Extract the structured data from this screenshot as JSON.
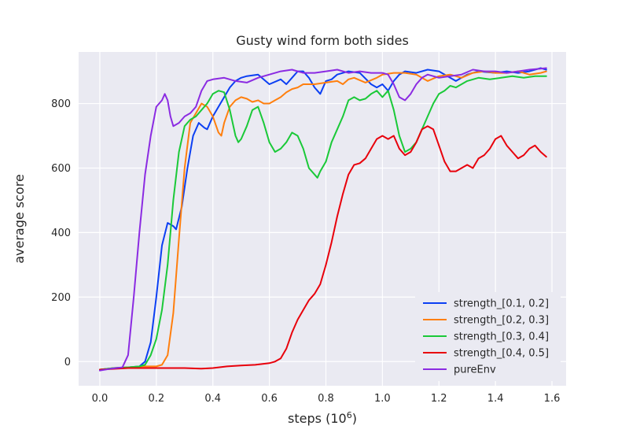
{
  "chart_data": {
    "type": "line",
    "title": "Gusty wind form both sides",
    "xlabel_base": "steps (10",
    "xlabel_exp": "6",
    "xlabel_close": ")",
    "ylabel": "average score",
    "xlim": [
      -0.075,
      1.65
    ],
    "ylim": [
      -75,
      960
    ],
    "xticks": [
      0.0,
      0.2,
      0.4,
      0.6,
      0.8,
      1.0,
      1.2,
      1.4,
      1.6
    ],
    "xtick_labels": [
      "0.0",
      "0.2",
      "0.4",
      "0.6",
      "0.8",
      "1.0",
      "1.2",
      "1.4",
      "1.6"
    ],
    "yticks": [
      0,
      200,
      400,
      600,
      800
    ],
    "ytick_labels": [
      "0",
      "200",
      "400",
      "600",
      "800"
    ],
    "grid": true,
    "legend_position": "lower-right",
    "background": "#eaeaf2",
    "series": [
      {
        "name": "strength_[0.1, 0.2]",
        "color": "#0b3ff3",
        "points": [
          [
            0.0,
            -25
          ],
          [
            0.05,
            -20
          ],
          [
            0.1,
            -18
          ],
          [
            0.14,
            -15
          ],
          [
            0.16,
            0
          ],
          [
            0.18,
            60
          ],
          [
            0.2,
            200
          ],
          [
            0.22,
            360
          ],
          [
            0.24,
            430
          ],
          [
            0.26,
            420
          ],
          [
            0.27,
            410
          ],
          [
            0.29,
            480
          ],
          [
            0.31,
            600
          ],
          [
            0.33,
            700
          ],
          [
            0.35,
            740
          ],
          [
            0.37,
            725
          ],
          [
            0.38,
            720
          ],
          [
            0.4,
            760
          ],
          [
            0.42,
            790
          ],
          [
            0.44,
            820
          ],
          [
            0.46,
            850
          ],
          [
            0.48,
            870
          ],
          [
            0.5,
            880
          ],
          [
            0.52,
            885
          ],
          [
            0.56,
            890
          ],
          [
            0.6,
            860
          ],
          [
            0.64,
            875
          ],
          [
            0.66,
            860
          ],
          [
            0.68,
            880
          ],
          [
            0.7,
            900
          ],
          [
            0.72,
            900
          ],
          [
            0.74,
            880
          ],
          [
            0.76,
            850
          ],
          [
            0.78,
            830
          ],
          [
            0.8,
            870
          ],
          [
            0.82,
            875
          ],
          [
            0.84,
            890
          ],
          [
            0.88,
            900
          ],
          [
            0.92,
            895
          ],
          [
            0.96,
            860
          ],
          [
            0.98,
            850
          ],
          [
            1.0,
            860
          ],
          [
            1.02,
            840
          ],
          [
            1.04,
            870
          ],
          [
            1.06,
            890
          ],
          [
            1.08,
            900
          ],
          [
            1.12,
            895
          ],
          [
            1.16,
            905
          ],
          [
            1.2,
            900
          ],
          [
            1.24,
            880
          ],
          [
            1.26,
            870
          ],
          [
            1.28,
            880
          ],
          [
            1.3,
            890
          ],
          [
            1.34,
            900
          ],
          [
            1.4,
            895
          ],
          [
            1.44,
            900
          ],
          [
            1.48,
            895
          ],
          [
            1.52,
            900
          ],
          [
            1.56,
            910
          ],
          [
            1.58,
            905
          ]
        ]
      },
      {
        "name": "strength_[0.2, 0.3]",
        "color": "#ff7f0e",
        "points": [
          [
            0.0,
            -25
          ],
          [
            0.05,
            -20
          ],
          [
            0.1,
            -18
          ],
          [
            0.15,
            -15
          ],
          [
            0.2,
            -15
          ],
          [
            0.22,
            -10
          ],
          [
            0.24,
            20
          ],
          [
            0.26,
            150
          ],
          [
            0.28,
            380
          ],
          [
            0.3,
            600
          ],
          [
            0.32,
            740
          ],
          [
            0.34,
            770
          ],
          [
            0.36,
            800
          ],
          [
            0.38,
            790
          ],
          [
            0.4,
            760
          ],
          [
            0.42,
            710
          ],
          [
            0.43,
            700
          ],
          [
            0.44,
            740
          ],
          [
            0.46,
            790
          ],
          [
            0.48,
            810
          ],
          [
            0.5,
            820
          ],
          [
            0.52,
            815
          ],
          [
            0.54,
            805
          ],
          [
            0.56,
            810
          ],
          [
            0.58,
            800
          ],
          [
            0.6,
            800
          ],
          [
            0.62,
            810
          ],
          [
            0.64,
            820
          ],
          [
            0.66,
            835
          ],
          [
            0.68,
            845
          ],
          [
            0.7,
            850
          ],
          [
            0.72,
            860
          ],
          [
            0.76,
            860
          ],
          [
            0.8,
            865
          ],
          [
            0.84,
            870
          ],
          [
            0.86,
            860
          ],
          [
            0.88,
            875
          ],
          [
            0.9,
            880
          ],
          [
            0.94,
            865
          ],
          [
            0.98,
            880
          ],
          [
            1.0,
            890
          ],
          [
            1.04,
            895
          ],
          [
            1.08,
            895
          ],
          [
            1.12,
            890
          ],
          [
            1.16,
            870
          ],
          [
            1.2,
            885
          ],
          [
            1.24,
            890
          ],
          [
            1.28,
            880
          ],
          [
            1.32,
            895
          ],
          [
            1.36,
            900
          ],
          [
            1.4,
            895
          ],
          [
            1.44,
            895
          ],
          [
            1.48,
            900
          ],
          [
            1.52,
            890
          ],
          [
            1.56,
            895
          ],
          [
            1.58,
            900
          ]
        ]
      },
      {
        "name": "strength_[0.3, 0.4]",
        "color": "#1ac938",
        "points": [
          [
            0.0,
            -25
          ],
          [
            0.05,
            -20
          ],
          [
            0.1,
            -18
          ],
          [
            0.14,
            -15
          ],
          [
            0.16,
            -10
          ],
          [
            0.18,
            20
          ],
          [
            0.2,
            70
          ],
          [
            0.22,
            160
          ],
          [
            0.24,
            300
          ],
          [
            0.26,
            500
          ],
          [
            0.28,
            650
          ],
          [
            0.3,
            730
          ],
          [
            0.32,
            750
          ],
          [
            0.34,
            760
          ],
          [
            0.36,
            780
          ],
          [
            0.38,
            800
          ],
          [
            0.4,
            830
          ],
          [
            0.42,
            840
          ],
          [
            0.44,
            835
          ],
          [
            0.46,
            780
          ],
          [
            0.48,
            700
          ],
          [
            0.49,
            680
          ],
          [
            0.5,
            690
          ],
          [
            0.52,
            730
          ],
          [
            0.54,
            780
          ],
          [
            0.56,
            790
          ],
          [
            0.58,
            740
          ],
          [
            0.6,
            680
          ],
          [
            0.62,
            650
          ],
          [
            0.64,
            660
          ],
          [
            0.66,
            680
          ],
          [
            0.68,
            710
          ],
          [
            0.7,
            700
          ],
          [
            0.72,
            660
          ],
          [
            0.74,
            600
          ],
          [
            0.76,
            580
          ],
          [
            0.77,
            570
          ],
          [
            0.78,
            590
          ],
          [
            0.8,
            620
          ],
          [
            0.82,
            680
          ],
          [
            0.84,
            720
          ],
          [
            0.86,
            760
          ],
          [
            0.88,
            810
          ],
          [
            0.9,
            820
          ],
          [
            0.92,
            810
          ],
          [
            0.94,
            815
          ],
          [
            0.96,
            830
          ],
          [
            0.98,
            840
          ],
          [
            1.0,
            820
          ],
          [
            1.02,
            840
          ],
          [
            1.04,
            780
          ],
          [
            1.06,
            700
          ],
          [
            1.08,
            650
          ],
          [
            1.1,
            660
          ],
          [
            1.12,
            680
          ],
          [
            1.14,
            720
          ],
          [
            1.16,
            760
          ],
          [
            1.18,
            800
          ],
          [
            1.2,
            830
          ],
          [
            1.22,
            840
          ],
          [
            1.24,
            855
          ],
          [
            1.26,
            850
          ],
          [
            1.28,
            860
          ],
          [
            1.3,
            870
          ],
          [
            1.34,
            880
          ],
          [
            1.38,
            875
          ],
          [
            1.42,
            880
          ],
          [
            1.46,
            885
          ],
          [
            1.5,
            880
          ],
          [
            1.54,
            885
          ],
          [
            1.58,
            885
          ]
        ]
      },
      {
        "name": "strength_[0.4, 0.5]",
        "color": "#e8000b",
        "points": [
          [
            0.0,
            -25
          ],
          [
            0.1,
            -20
          ],
          [
            0.2,
            -20
          ],
          [
            0.3,
            -20
          ],
          [
            0.36,
            -22
          ],
          [
            0.4,
            -20
          ],
          [
            0.45,
            -15
          ],
          [
            0.5,
            -12
          ],
          [
            0.55,
            -10
          ],
          [
            0.6,
            -5
          ],
          [
            0.62,
            0
          ],
          [
            0.64,
            10
          ],
          [
            0.66,
            40
          ],
          [
            0.68,
            90
          ],
          [
            0.7,
            130
          ],
          [
            0.72,
            160
          ],
          [
            0.74,
            190
          ],
          [
            0.76,
            210
          ],
          [
            0.78,
            240
          ],
          [
            0.8,
            300
          ],
          [
            0.82,
            370
          ],
          [
            0.84,
            450
          ],
          [
            0.86,
            520
          ],
          [
            0.88,
            580
          ],
          [
            0.9,
            610
          ],
          [
            0.92,
            615
          ],
          [
            0.94,
            630
          ],
          [
            0.96,
            660
          ],
          [
            0.98,
            690
          ],
          [
            1.0,
            700
          ],
          [
            1.02,
            690
          ],
          [
            1.04,
            700
          ],
          [
            1.06,
            660
          ],
          [
            1.08,
            640
          ],
          [
            1.1,
            650
          ],
          [
            1.12,
            680
          ],
          [
            1.14,
            720
          ],
          [
            1.16,
            730
          ],
          [
            1.18,
            720
          ],
          [
            1.2,
            670
          ],
          [
            1.22,
            620
          ],
          [
            1.24,
            590
          ],
          [
            1.26,
            590
          ],
          [
            1.28,
            600
          ],
          [
            1.3,
            610
          ],
          [
            1.32,
            600
          ],
          [
            1.34,
            630
          ],
          [
            1.36,
            640
          ],
          [
            1.38,
            660
          ],
          [
            1.4,
            690
          ],
          [
            1.42,
            700
          ],
          [
            1.44,
            670
          ],
          [
            1.46,
            650
          ],
          [
            1.48,
            630
          ],
          [
            1.5,
            640
          ],
          [
            1.52,
            660
          ],
          [
            1.54,
            670
          ],
          [
            1.56,
            650
          ],
          [
            1.58,
            635
          ]
        ]
      },
      {
        "name": "pureEnv",
        "color": "#8b2be2",
        "points": [
          [
            0.0,
            -28
          ],
          [
            0.04,
            -22
          ],
          [
            0.08,
            -18
          ],
          [
            0.1,
            20
          ],
          [
            0.12,
            200
          ],
          [
            0.14,
            400
          ],
          [
            0.16,
            580
          ],
          [
            0.18,
            700
          ],
          [
            0.2,
            790
          ],
          [
            0.22,
            810
          ],
          [
            0.23,
            830
          ],
          [
            0.24,
            810
          ],
          [
            0.25,
            760
          ],
          [
            0.26,
            730
          ],
          [
            0.28,
            740
          ],
          [
            0.3,
            760
          ],
          [
            0.32,
            770
          ],
          [
            0.34,
            790
          ],
          [
            0.36,
            840
          ],
          [
            0.38,
            870
          ],
          [
            0.4,
            875
          ],
          [
            0.44,
            880
          ],
          [
            0.48,
            870
          ],
          [
            0.52,
            865
          ],
          [
            0.56,
            880
          ],
          [
            0.6,
            890
          ],
          [
            0.64,
            900
          ],
          [
            0.68,
            905
          ],
          [
            0.72,
            895
          ],
          [
            0.76,
            895
          ],
          [
            0.8,
            900
          ],
          [
            0.84,
            905
          ],
          [
            0.88,
            895
          ],
          [
            0.92,
            900
          ],
          [
            0.96,
            895
          ],
          [
            1.0,
            895
          ],
          [
            1.02,
            890
          ],
          [
            1.04,
            860
          ],
          [
            1.06,
            820
          ],
          [
            1.08,
            810
          ],
          [
            1.1,
            830
          ],
          [
            1.12,
            860
          ],
          [
            1.14,
            880
          ],
          [
            1.16,
            890
          ],
          [
            1.2,
            880
          ],
          [
            1.24,
            885
          ],
          [
            1.28,
            890
          ],
          [
            1.32,
            905
          ],
          [
            1.36,
            900
          ],
          [
            1.4,
            900
          ],
          [
            1.44,
            895
          ],
          [
            1.48,
            900
          ],
          [
            1.52,
            905
          ],
          [
            1.56,
            908
          ],
          [
            1.58,
            910
          ]
        ]
      }
    ]
  }
}
